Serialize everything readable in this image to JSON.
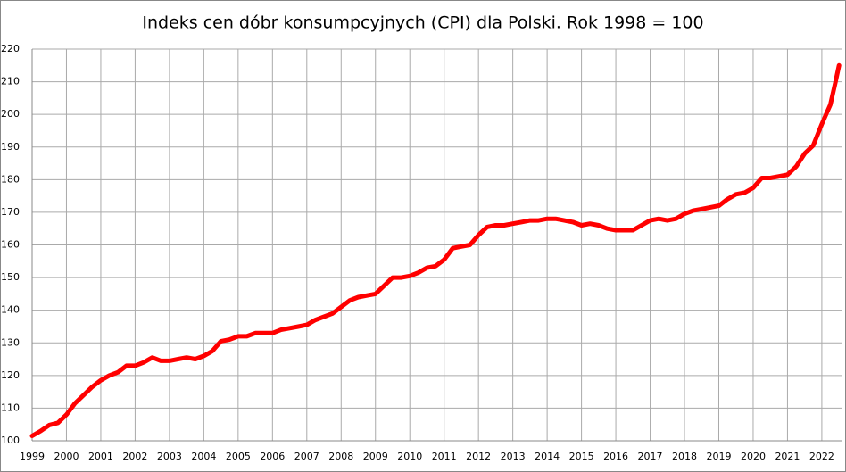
{
  "chart_data": {
    "type": "line",
    "title": "Indeks cen dóbr konsumpcyjnych (CPI) dla Polski. Rok 1998 = 100",
    "x": [
      1999,
      1999.25,
      1999.5,
      1999.75,
      2000,
      2000.25,
      2000.5,
      2000.75,
      2001,
      2001.25,
      2001.5,
      2001.75,
      2002,
      2002.25,
      2002.5,
      2002.75,
      2003,
      2003.25,
      2003.5,
      2003.75,
      2004,
      2004.25,
      2004.5,
      2004.75,
      2005,
      2005.25,
      2005.5,
      2005.75,
      2006,
      2006.25,
      2006.5,
      2006.75,
      2007,
      2007.25,
      2007.5,
      2007.75,
      2008,
      2008.25,
      2008.5,
      2008.75,
      2009,
      2009.25,
      2009.5,
      2009.75,
      2010,
      2010.25,
      2010.5,
      2010.75,
      2011,
      2011.25,
      2011.5,
      2011.75,
      2012,
      2012.25,
      2012.5,
      2012.75,
      2013,
      2013.25,
      2013.5,
      2013.75,
      2014,
      2014.25,
      2014.5,
      2014.75,
      2015,
      2015.25,
      2015.5,
      2015.75,
      2016,
      2016.25,
      2016.5,
      2016.75,
      2017,
      2017.25,
      2017.5,
      2017.75,
      2018,
      2018.25,
      2018.5,
      2018.75,
      2019,
      2019.25,
      2019.5,
      2019.75,
      2020,
      2020.25,
      2020.5,
      2020.75,
      2021,
      2021.25,
      2021.5,
      2021.75,
      2022,
      2022.25,
      2022.4,
      2022.5
    ],
    "series": [
      {
        "name": "CPI",
        "color": "#ff0000",
        "values": [
          101.5,
          103,
          104.8,
          105.5,
          108,
          111.5,
          114,
          116.5,
          118.5,
          120,
          121,
          123,
          123,
          124,
          125.5,
          124.5,
          124.5,
          125,
          125.5,
          125,
          126,
          127.5,
          130.5,
          131,
          132,
          132,
          133,
          133,
          133,
          134,
          134.5,
          135,
          135.5,
          137,
          138,
          139,
          141,
          143,
          144,
          144.5,
          145,
          147.5,
          150,
          150,
          150.5,
          151.5,
          153,
          153.5,
          155.5,
          159,
          159.5,
          160,
          163,
          165.5,
          166,
          166,
          166.5,
          167,
          167.5,
          167.5,
          168,
          168,
          167.5,
          167,
          166,
          166.5,
          166,
          165,
          164.5,
          164.5,
          164.5,
          166,
          167.5,
          168,
          167.5,
          168,
          169.5,
          170.5,
          171,
          171.5,
          172,
          174,
          175.5,
          176,
          177.5,
          180.5,
          180.5,
          181,
          181.5,
          184,
          188,
          190.5,
          197,
          203,
          210,
          215
        ]
      }
    ],
    "xlim": [
      1999,
      2022.6
    ],
    "xticks": [
      1999,
      2000,
      2001,
      2002,
      2003,
      2004,
      2005,
      2006,
      2007,
      2008,
      2009,
      2010,
      2011,
      2012,
      2013,
      2014,
      2015,
      2016,
      2017,
      2018,
      2019,
      2020,
      2021,
      2022
    ],
    "ylim": [
      100,
      220
    ],
    "yticks": [
      100,
      110,
      120,
      130,
      140,
      150,
      160,
      170,
      180,
      190,
      200,
      210,
      220
    ],
    "grid": true
  }
}
